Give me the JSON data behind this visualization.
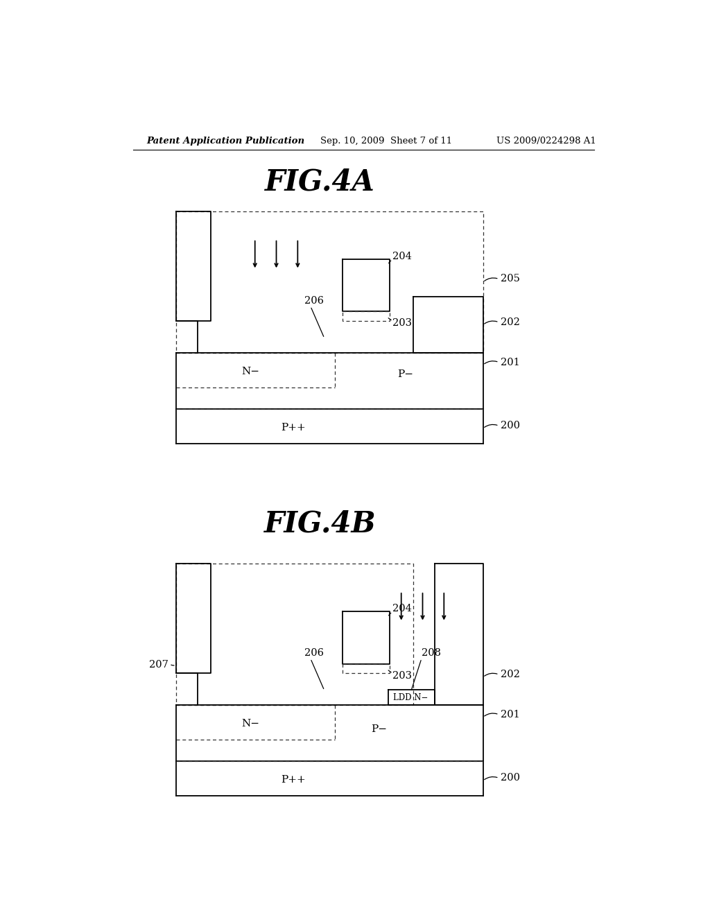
{
  "bg_color": "#ffffff",
  "header_left": "Patent Application Publication",
  "header_center": "Sep. 10, 2009  Sheet 7 of 11",
  "header_right": "US 2009/0224298 A1",
  "fig4a_title": "FIG.4A",
  "fig4b_title": "FIG.4B",
  "line_color": "#000000",
  "dashed_color": "#555555",
  "text_color": "#000000"
}
